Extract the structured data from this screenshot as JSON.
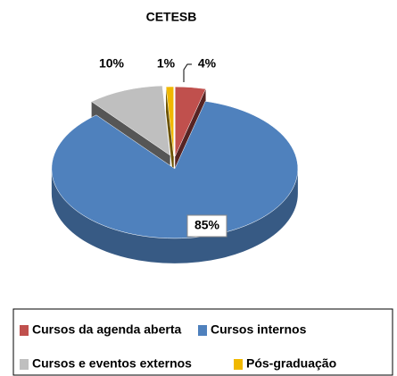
{
  "chart_data": {
    "type": "pie",
    "title": "CETESB",
    "categories": [
      "Cursos da agenda aberta",
      "Cursos internos",
      "Cursos e eventos externos",
      "Pós-graduação"
    ],
    "values": [
      4,
      85,
      10,
      1
    ],
    "value_labels": [
      "4%",
      "85%",
      "10%",
      "1%"
    ],
    "colors": [
      "#c0504d",
      "#4f81bd",
      "#bfbfbf",
      "#f0b800"
    ]
  }
}
